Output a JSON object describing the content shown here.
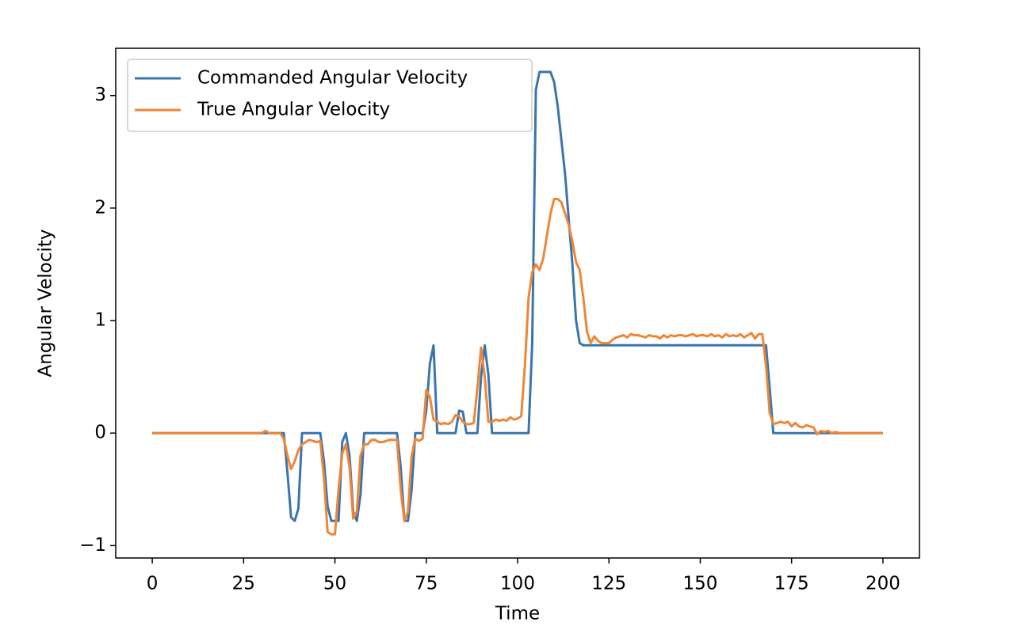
{
  "chart_data": {
    "type": "line",
    "xlabel": "Time",
    "ylabel": "Angular Velocity",
    "xlim": [
      -10,
      210
    ],
    "ylim": [
      -1.11,
      3.42
    ],
    "xticks": [
      0,
      25,
      50,
      75,
      100,
      125,
      150,
      175,
      200
    ],
    "yticks": [
      {
        "value": -1,
        "label": "−1"
      },
      0,
      1,
      2,
      3
    ],
    "legend": "upper left",
    "x": [
      0,
      1,
      2,
      3,
      4,
      5,
      6,
      7,
      8,
      9,
      10,
      11,
      12,
      13,
      14,
      15,
      16,
      17,
      18,
      19,
      20,
      21,
      22,
      23,
      24,
      25,
      26,
      27,
      28,
      29,
      30,
      31,
      32,
      33,
      34,
      35,
      36,
      37,
      38,
      39,
      40,
      41,
      42,
      43,
      44,
      45,
      46,
      47,
      48,
      49,
      50,
      51,
      52,
      53,
      54,
      55,
      56,
      57,
      58,
      59,
      60,
      61,
      62,
      63,
      64,
      65,
      66,
      67,
      68,
      69,
      70,
      71,
      72,
      73,
      74,
      75,
      76,
      77,
      78,
      79,
      80,
      81,
      82,
      83,
      84,
      85,
      86,
      87,
      88,
      89,
      90,
      91,
      92,
      93,
      94,
      95,
      96,
      97,
      98,
      99,
      100,
      101,
      102,
      103,
      104,
      105,
      106,
      107,
      108,
      109,
      110,
      111,
      112,
      113,
      114,
      115,
      116,
      117,
      118,
      119,
      120,
      121,
      122,
      123,
      124,
      125,
      126,
      127,
      128,
      129,
      130,
      131,
      132,
      133,
      134,
      135,
      136,
      137,
      138,
      139,
      140,
      141,
      142,
      143,
      144,
      145,
      146,
      147,
      148,
      149,
      150,
      151,
      152,
      153,
      154,
      155,
      156,
      157,
      158,
      159,
      160,
      161,
      162,
      163,
      164,
      165,
      166,
      167,
      168,
      169,
      170,
      171,
      172,
      173,
      174,
      175,
      176,
      177,
      178,
      179,
      180,
      181,
      182,
      183,
      184,
      185,
      186,
      187,
      188,
      189,
      190,
      191,
      192,
      193,
      194,
      195,
      196,
      197,
      198,
      199,
      200
    ],
    "series": [
      {
        "name": "Commanded Angular Velocity",
        "color": "#3b75af",
        "values": [
          0,
          0,
          0,
          0,
          0,
          0,
          0,
          0,
          0,
          0,
          0,
          0,
          0,
          0,
          0,
          0,
          0,
          0,
          0,
          0,
          0,
          0,
          0,
          0,
          0,
          0,
          0,
          0,
          0,
          0,
          0,
          0,
          0,
          0,
          0,
          0,
          0,
          -0.35,
          -0.75,
          -0.78,
          -0.67,
          0,
          0,
          0,
          0,
          0,
          0,
          -0.25,
          -0.65,
          -0.78,
          -0.78,
          -0.78,
          -0.08,
          0,
          -0.2,
          -0.7,
          -0.78,
          -0.55,
          0,
          0,
          0,
          0,
          0,
          0,
          0,
          0,
          0,
          0,
          -0.3,
          -0.78,
          -0.78,
          -0.5,
          0,
          0,
          0,
          0.2,
          0.62,
          0.78,
          0,
          0,
          0,
          0,
          0,
          0,
          0.2,
          0.19,
          0,
          0,
          0,
          0,
          0.5,
          0.78,
          0.52,
          0,
          0,
          0,
          0,
          0,
          0,
          0,
          0,
          0,
          0,
          0,
          0.8,
          3.05,
          3.21,
          3.21,
          3.21,
          3.21,
          3.12,
          2.9,
          2.6,
          2.3,
          1.9,
          1.5,
          1.0,
          0.8,
          0.78,
          0.78,
          0.78,
          0.78,
          0.78,
          0.78,
          0.78,
          0.78,
          0.78,
          0.78,
          0.78,
          0.78,
          0.78,
          0.78,
          0.78,
          0.78,
          0.78,
          0.78,
          0.78,
          0.78,
          0.78,
          0.78,
          0.78,
          0.78,
          0.78,
          0.78,
          0.78,
          0.78,
          0.78,
          0.78,
          0.78,
          0.78,
          0.78,
          0.78,
          0.78,
          0.78,
          0.78,
          0.78,
          0.78,
          0.78,
          0.78,
          0.78,
          0.78,
          0.78,
          0.78,
          0.78,
          0.78,
          0.78,
          0.78,
          0.78,
          0.78,
          0.4,
          0,
          0,
          0,
          0,
          0,
          0,
          0,
          0,
          0,
          0,
          0,
          0,
          0,
          0,
          0,
          0,
          0,
          0,
          0,
          0,
          0,
          0,
          0,
          0,
          0,
          0,
          0,
          0,
          0,
          0,
          0
        ]
      },
      {
        "name": "True Angular Velocity",
        "color": "#ef8636",
        "values": [
          0,
          0,
          0,
          0,
          0,
          0,
          0,
          0,
          0,
          0,
          0,
          0,
          0,
          0,
          0,
          0,
          0,
          0,
          0,
          0,
          0,
          0,
          0,
          0,
          0,
          0,
          0,
          0,
          0,
          0,
          0,
          0.02,
          0,
          0,
          0,
          0,
          -0.05,
          -0.2,
          -0.32,
          -0.25,
          -0.15,
          -0.1,
          -0.08,
          -0.06,
          -0.07,
          -0.08,
          -0.07,
          -0.4,
          -0.88,
          -0.9,
          -0.9,
          -0.5,
          -0.18,
          -0.1,
          -0.3,
          -0.76,
          -0.7,
          -0.2,
          -0.1,
          -0.1,
          -0.06,
          -0.06,
          -0.08,
          -0.08,
          -0.07,
          -0.06,
          -0.06,
          -0.06,
          -0.5,
          -0.78,
          -0.7,
          -0.2,
          -0.05,
          -0.07,
          -0.05,
          0.38,
          0.32,
          0.12,
          0.1,
          0.08,
          0.09,
          0.08,
          0.1,
          0.16,
          0.15,
          0.1,
          0.08,
          0.08,
          0.09,
          0.4,
          0.76,
          0.5,
          0.1,
          0.1,
          0.12,
          0.11,
          0.12,
          0.11,
          0.14,
          0.12,
          0.13,
          0.15,
          0.6,
          1.2,
          1.43,
          1.5,
          1.45,
          1.55,
          1.75,
          1.95,
          2.08,
          2.08,
          2.05,
          1.95,
          1.85,
          1.7,
          1.52,
          1.45,
          1.2,
          0.9,
          0.8,
          0.86,
          0.82,
          0.8,
          0.8,
          0.8,
          0.83,
          0.85,
          0.86,
          0.87,
          0.85,
          0.88,
          0.87,
          0.87,
          0.86,
          0.85,
          0.87,
          0.86,
          0.86,
          0.84,
          0.87,
          0.85,
          0.87,
          0.86,
          0.87,
          0.87,
          0.86,
          0.87,
          0.88,
          0.86,
          0.87,
          0.87,
          0.86,
          0.88,
          0.86,
          0.87,
          0.85,
          0.88,
          0.86,
          0.87,
          0.86,
          0.88,
          0.85,
          0.87,
          0.89,
          0.84,
          0.88,
          0.88,
          0.6,
          0.18,
          0.08,
          0.09,
          0.1,
          0.09,
          0.1,
          0.06,
          0.09,
          0.06,
          0.05,
          0.07,
          0.06,
          0.05,
          -0.01,
          0.02,
          0.01,
          0.02,
          0,
          0.01,
          0,
          0,
          0,
          0,
          0,
          0,
          0,
          0,
          0,
          0,
          0,
          0,
          0
        ]
      }
    ]
  }
}
